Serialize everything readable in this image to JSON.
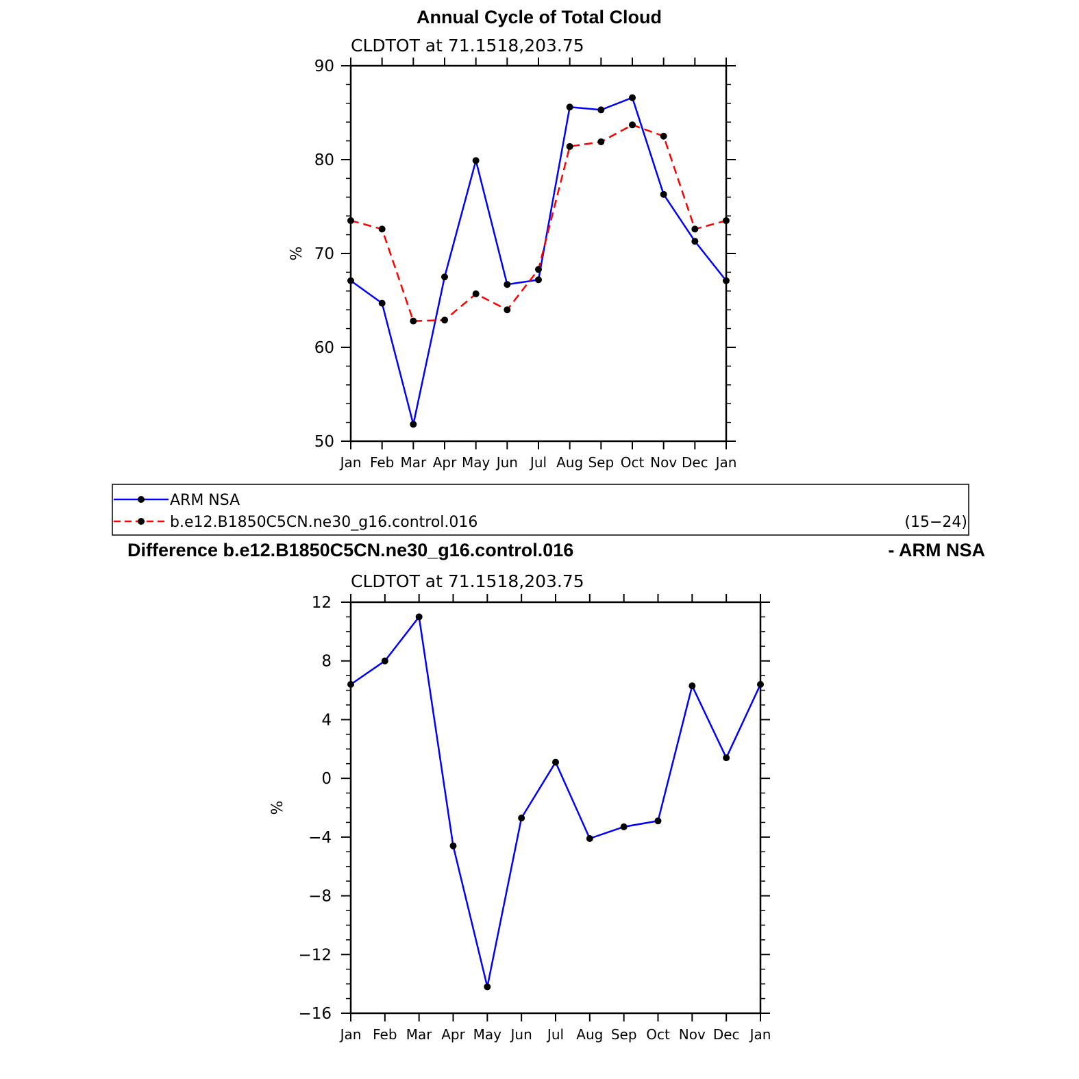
{
  "figure": {
    "title": "Annual Cycle of Total Cloud",
    "diff_title_left": "Difference b.e12.B1850C5CN.ne30_g16.control.016",
    "diff_title_right": "- ARM NSA"
  },
  "legend": {
    "entries": [
      {
        "label": "ARM NSA",
        "color": "#0000ff",
        "dash": "solid"
      },
      {
        "label": "b.e12.B1850C5CN.ne30_g16.control.016",
        "color": "#ff0000",
        "dash": "dashed"
      }
    ],
    "years": "(15−24)"
  },
  "chart_data": [
    {
      "type": "line",
      "subtitle": "CLDTOT at 71.1518,203.75",
      "ylabel": "%",
      "categories": [
        "Jan",
        "Feb",
        "Mar",
        "Apr",
        "May",
        "Jun",
        "Jul",
        "Aug",
        "Sep",
        "Oct",
        "Nov",
        "Dec",
        "Jan"
      ],
      "ylim": [
        50,
        90
      ],
      "yticks": [
        "50",
        "60",
        "70",
        "80",
        "90"
      ],
      "series": [
        {
          "name": "ARM NSA",
          "color": "#0000ff",
          "dash": "solid",
          "values": [
            67.1,
            64.7,
            51.8,
            67.5,
            79.9,
            66.7,
            67.2,
            85.6,
            85.3,
            86.6,
            76.3,
            71.3,
            67.1
          ]
        },
        {
          "name": "b.e12.B1850C5CN.ne30_g16.control.016",
          "color": "#ff0000",
          "dash": "dashed",
          "values": [
            73.5,
            72.6,
            62.8,
            62.9,
            65.7,
            64.0,
            68.3,
            81.4,
            81.9,
            83.7,
            82.5,
            72.6,
            73.5
          ]
        }
      ]
    },
    {
      "type": "line",
      "subtitle": "CLDTOT at 71.1518,203.75",
      "ylabel": "%",
      "categories": [
        "Jan",
        "Feb",
        "Mar",
        "Apr",
        "May",
        "Jun",
        "Jul",
        "Aug",
        "Sep",
        "Oct",
        "Nov",
        "Dec",
        "Jan"
      ],
      "ylim": [
        -16,
        12
      ],
      "yticks": [
        "−16",
        "−12",
        "−8",
        "−4",
        "0",
        "4",
        "8",
        "12"
      ],
      "series": [
        {
          "color": "#0000ff",
          "dash": "solid",
          "values": [
            6.4,
            8.0,
            11.0,
            -4.6,
            -14.2,
            -2.7,
            1.1,
            -4.1,
            -3.3,
            -2.9,
            6.3,
            1.4,
            6.4
          ]
        }
      ]
    }
  ]
}
